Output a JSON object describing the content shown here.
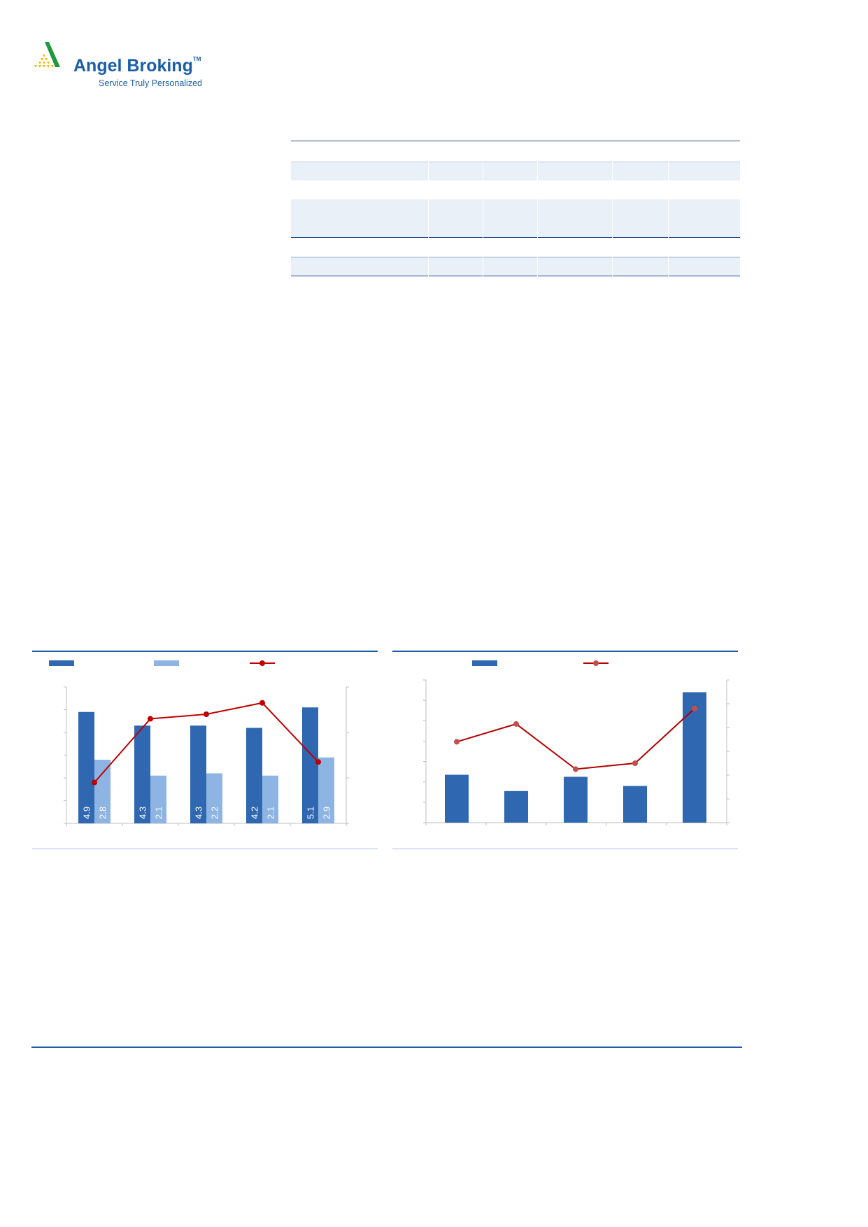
{
  "header": {
    "logo": {
      "brand": "Angel Broking",
      "trademark": "TM",
      "tagline": "Service Truly Personalized"
    }
  },
  "colors": {
    "brand_blue": "#1a5ea8",
    "bar_dark": "#2f67b1",
    "bar_light": "#8db4e2",
    "line_red": "#c00000",
    "line_red_marker": "#c0504d",
    "table_shade": "#eaf0f8"
  },
  "chart_data": [
    {
      "type": "bar",
      "categories": [
        "",
        "",
        "",
        "",
        ""
      ],
      "series": [
        {
          "values": [
            4.9,
            4.3,
            4.3,
            4.2,
            5.1
          ],
          "kind": "bar",
          "axis": "left",
          "color": "#2f67b1",
          "data_labels": [
            "4.9",
            "4.3",
            "4.3",
            "4.2",
            "5.1"
          ]
        },
        {
          "values": [
            2.8,
            2.1,
            2.2,
            2.1,
            2.9
          ],
          "kind": "bar",
          "axis": "left",
          "color": "#8db4e2",
          "data_labels": [
            "2.8",
            "2.1",
            "2.2",
            "2.1",
            "2.9"
          ]
        },
        {
          "values": [
            0.9,
            2.3,
            2.4,
            2.65,
            1.35
          ],
          "kind": "line",
          "axis": "right",
          "color": "#c00000"
        }
      ],
      "ylim": [
        0,
        6
      ],
      "y2lim": [
        0,
        3
      ],
      "legend": "top"
    },
    {
      "type": "bar",
      "categories": [
        "",
        "",
        "",
        "",
        ""
      ],
      "series": [
        {
          "values": [
            2.35,
            1.55,
            2.25,
            1.8,
            6.4
          ],
          "kind": "bar",
          "axis": "left",
          "color": "#2f67b1"
        },
        {
          "values": [
            3.4,
            4.15,
            2.25,
            2.5,
            4.8
          ],
          "kind": "line",
          "axis": "right",
          "color": "#c0504d"
        }
      ],
      "ylim": [
        0,
        7
      ],
      "y2lim": [
        0,
        6
      ],
      "legend": "top"
    }
  ]
}
